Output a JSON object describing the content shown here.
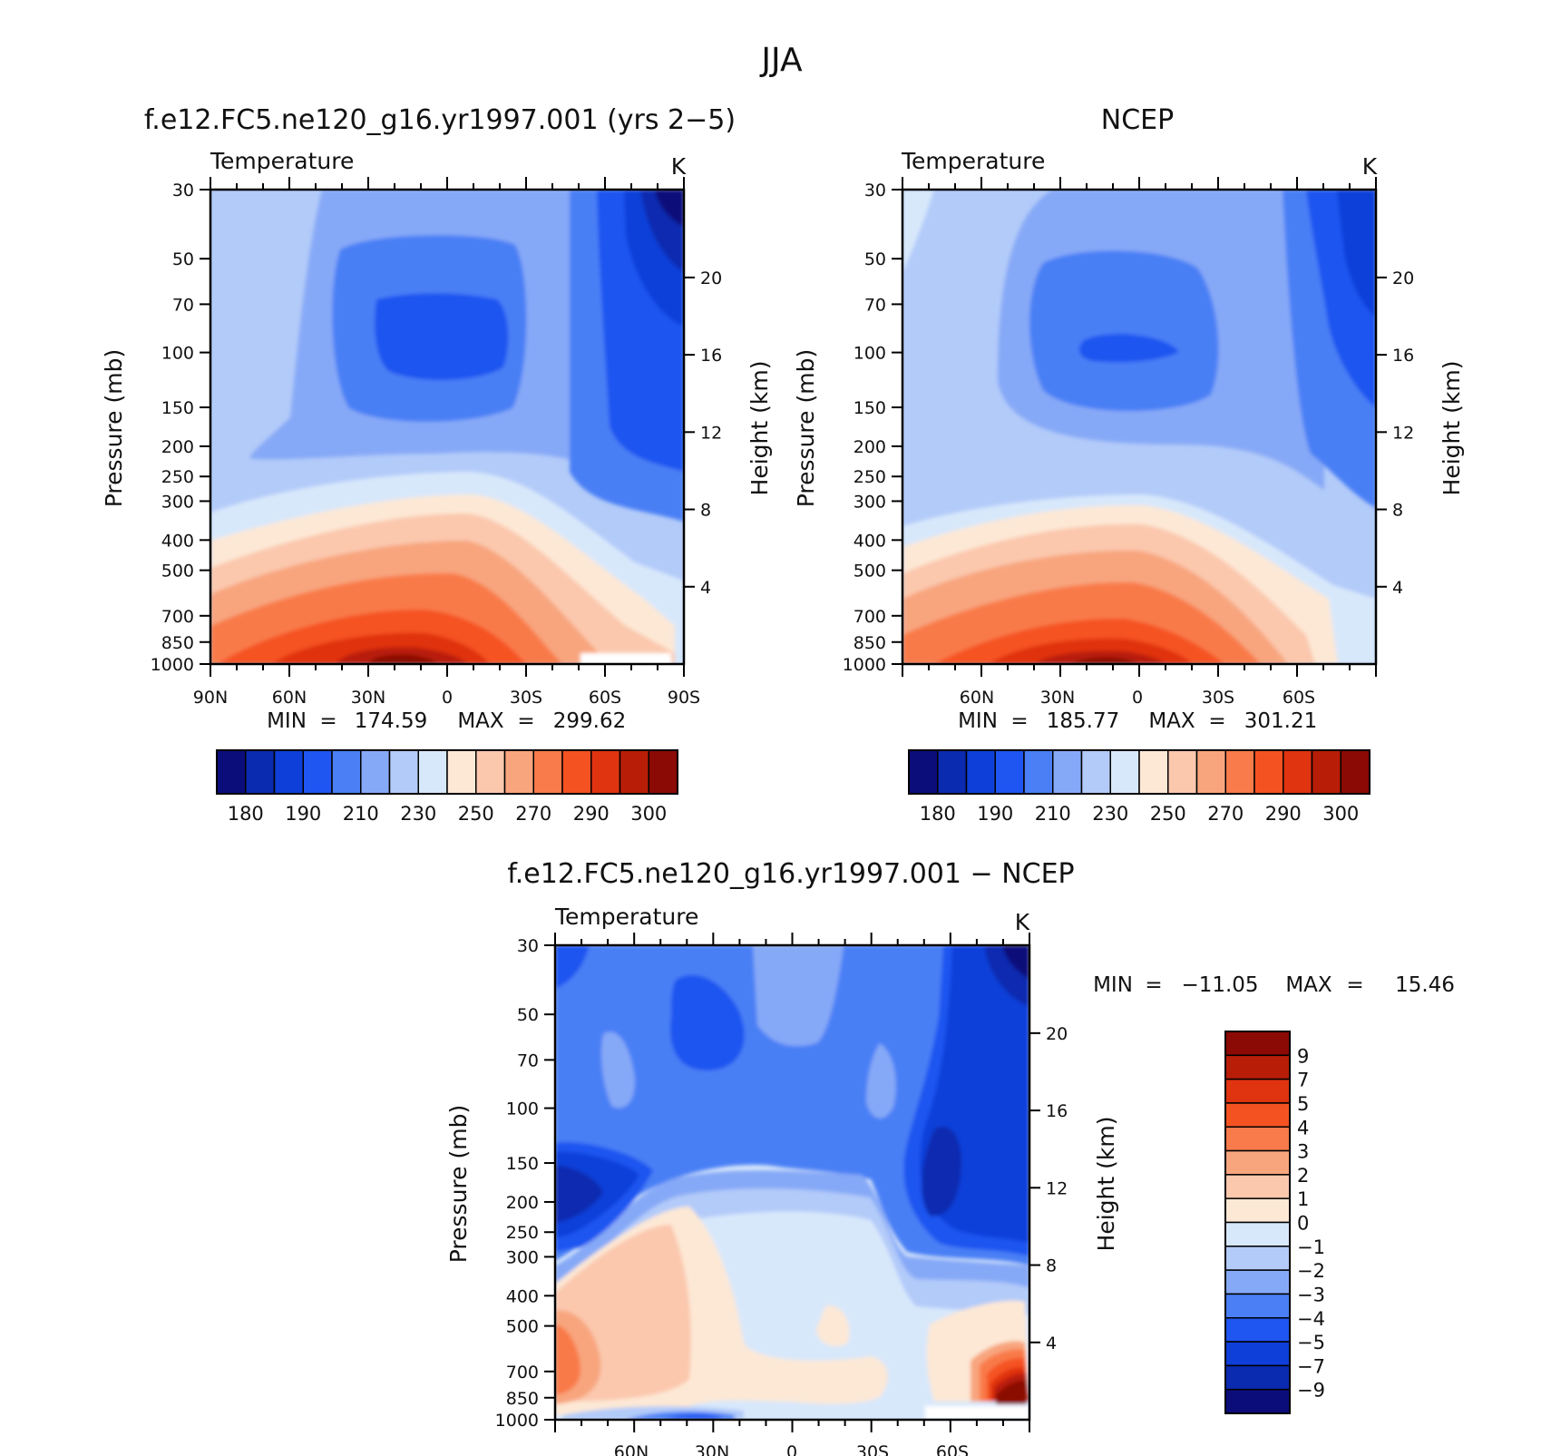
{
  "figure": {
    "title": "JJA"
  },
  "panels": [
    {
      "title": "f.e12.FC5.ne120_g16.yr1997.001 (yrs 2−5)",
      "variable": "Temperature",
      "units": "K",
      "left_axis_label": "Pressure (mb)",
      "right_axis_label": "Height (km)",
      "x_ticks": [
        "90N",
        "60N",
        "30N",
        "0",
        "30S",
        "60S",
        "90S"
      ],
      "stats": {
        "min_label": "MIN",
        "min": "174.59",
        "max_label": "MAX",
        "max": "299.62"
      }
    },
    {
      "title": "NCEP",
      "variable": "Temperature",
      "units": "K",
      "left_axis_label": "Pressure (mb)",
      "right_axis_label": "Height (km)",
      "x_ticks": [
        "60N",
        "30N",
        "0",
        "30S",
        "60S"
      ],
      "stats": {
        "min_label": "MIN",
        "min": "185.77",
        "max_label": "MAX",
        "max": "301.21"
      }
    },
    {
      "title": "f.e12.FC5.ne120_g16.yr1997.001 − NCEP",
      "variable": "Temperature",
      "units": "K",
      "left_axis_label": "Pressure (mb)",
      "right_axis_label": "Height (km)",
      "x_ticks": [
        "60N",
        "30N",
        "0",
        "30S",
        "60S"
      ],
      "stats": {
        "min_label": "MIN",
        "min": "−11.05",
        "max_label": "MAX",
        "max": "15.46"
      }
    }
  ],
  "colorbars": {
    "temperature": {
      "colors": [
        "#0b0d7a",
        "#0a2bb0",
        "#0f3fd9",
        "#1f55f0",
        "#4a7ff5",
        "#86a9f7",
        "#b3cbf9",
        "#d8e8fb",
        "#fde8d5",
        "#fbc8ad",
        "#f8a57e",
        "#f97a4a",
        "#f55222",
        "#e03310",
        "#b81d08",
        "#8b0a05"
      ],
      "labels": [
        "180",
        "190",
        "210",
        "230",
        "250",
        "270",
        "290",
        "300"
      ]
    },
    "difference": {
      "colors": [
        "#0b0d7a",
        "#0a2bb0",
        "#0f3fd9",
        "#1f55f0",
        "#4a7ff5",
        "#86a9f7",
        "#b3cbf9",
        "#d8e8fb",
        "#fde8d5",
        "#fbc8ad",
        "#f8a57e",
        "#f97a4a",
        "#f55222",
        "#e03310",
        "#b81d08",
        "#8b0a05"
      ],
      "labels": [
        "−9",
        "−7",
        "−5",
        "−4",
        "−3",
        "−2",
        "−1",
        "0",
        "1",
        "2",
        "3",
        "4",
        "5",
        "7",
        "9"
      ]
    }
  },
  "chart_data": [
    {
      "type": "heatmap",
      "title": "f.e12.FC5.ne120_g16.yr1997.001 (yrs 2−5)",
      "subtitle": "Temperature",
      "units": "K",
      "xlabel": "",
      "ylabel": "Pressure (mb)",
      "y2label": "Height (km)",
      "x_ticks": [
        "90N",
        "60N",
        "30N",
        "0",
        "30S",
        "60S",
        "90S"
      ],
      "y_ticks": [
        30,
        50,
        70,
        100,
        150,
        200,
        250,
        300,
        400,
        500,
        700,
        850,
        1000
      ],
      "y2_ticks": [
        4,
        8,
        12,
        16,
        20
      ],
      "xlim": [
        90,
        -90
      ],
      "ylim": [
        1000,
        30
      ],
      "y_scale": "log",
      "min": 174.59,
      "max": 299.62,
      "contour_levels": [
        180,
        185,
        190,
        200,
        210,
        220,
        230,
        240,
        250,
        260,
        270,
        280,
        290,
        295,
        300
      ]
    },
    {
      "type": "heatmap",
      "title": "NCEP",
      "subtitle": "Temperature",
      "units": "K",
      "xlabel": "",
      "ylabel": "Pressure (mb)",
      "y2label": "Height (km)",
      "x_ticks": [
        "60N",
        "30N",
        "0",
        "30S",
        "60S"
      ],
      "y_ticks": [
        30,
        50,
        70,
        100,
        150,
        200,
        250,
        300,
        400,
        500,
        700,
        850,
        1000
      ],
      "y2_ticks": [
        4,
        8,
        12,
        16,
        20
      ],
      "xlim": [
        90,
        -90
      ],
      "ylim": [
        1000,
        30
      ],
      "y_scale": "log",
      "min": 185.77,
      "max": 301.21,
      "contour_levels": [
        180,
        185,
        190,
        200,
        210,
        220,
        230,
        240,
        250,
        260,
        270,
        280,
        290,
        295,
        300
      ]
    },
    {
      "type": "heatmap",
      "title": "f.e12.FC5.ne120_g16.yr1997.001 − NCEP",
      "subtitle": "Temperature",
      "units": "K",
      "xlabel": "",
      "ylabel": "Pressure (mb)",
      "y2label": "Height (km)",
      "x_ticks": [
        "60N",
        "30N",
        "0",
        "30S",
        "60S"
      ],
      "y_ticks": [
        30,
        50,
        70,
        100,
        150,
        200,
        250,
        300,
        400,
        500,
        700,
        850,
        1000
      ],
      "y2_ticks": [
        4,
        8,
        12,
        16,
        20
      ],
      "xlim": [
        90,
        -90
      ],
      "ylim": [
        1000,
        30
      ],
      "y_scale": "log",
      "min": -11.05,
      "max": 15.46,
      "contour_levels": [
        -9,
        -7,
        -5,
        -4,
        -3,
        -2,
        -1,
        0,
        1,
        2,
        3,
        4,
        5,
        7,
        9
      ]
    }
  ]
}
